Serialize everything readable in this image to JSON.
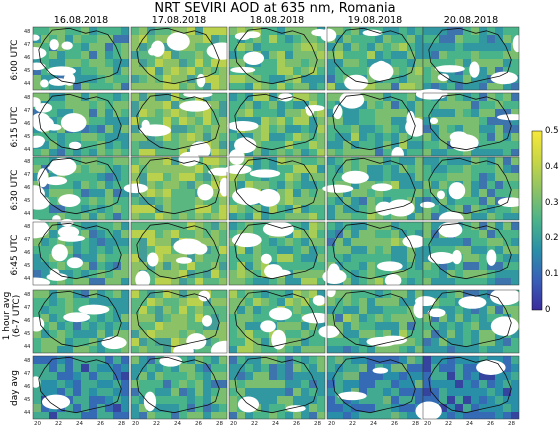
{
  "title": "NRT SEVIRI AOD at 635 nm, Romania",
  "columns": [
    "16.08.2018",
    "17.08.2018",
    "18.08.2018",
    "19.08.2018",
    "20.08.2018"
  ],
  "rows": [
    {
      "label": "6:00 UTC"
    },
    {
      "label": "6:15 UTC"
    },
    {
      "label": "6:30 UTC"
    },
    {
      "label": "6:45 UTC"
    },
    {
      "label_line1": "1 hour avg",
      "label_line2": "(6-7 UTC)"
    },
    {
      "label": "day avg"
    }
  ],
  "colorbar": {
    "min": 0,
    "max": 0.5,
    "ticks": [
      "0.5",
      "0.4",
      "0.3",
      "0.2",
      "0.1",
      "0"
    ],
    "colors": [
      "#f7e83a",
      "#c8d646",
      "#8cc266",
      "#4ab38a",
      "#2a8fa8",
      "#3a5fb8",
      "#3a2c9c"
    ]
  },
  "x_ticks": [
    "20",
    "22",
    "24",
    "26",
    "28"
  ],
  "y_ticks": [
    "48",
    "47",
    "46",
    "45",
    "44"
  ],
  "accent_colors": {
    "cloud": "#ffffff",
    "border": "#111111"
  }
}
